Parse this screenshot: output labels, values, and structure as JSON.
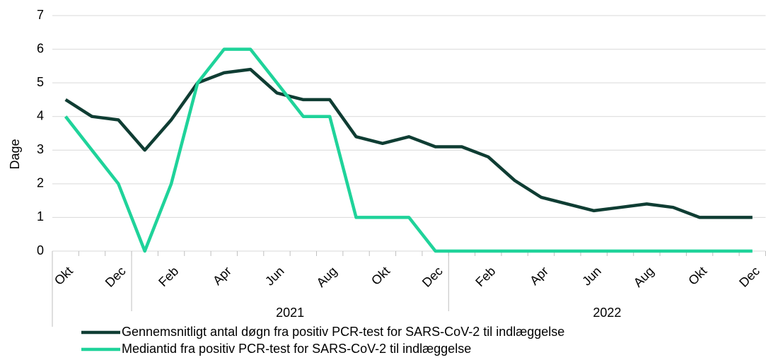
{
  "chart_data": {
    "type": "line",
    "y_label": "Dage",
    "categories": [
      "Okt",
      null,
      "Dec",
      null,
      "Feb",
      null,
      "Apr",
      null,
      "Jun",
      null,
      "Aug",
      null,
      "Okt",
      null,
      "Dec",
      null,
      "Feb",
      null,
      "Apr",
      null,
      "Jun",
      null,
      "Aug",
      null,
      "Okt",
      null,
      "Dec"
    ],
    "groups": [
      {
        "label": null,
        "size": 3
      },
      {
        "label": "2021",
        "size": 12
      },
      {
        "label": "2022",
        "size": 12
      }
    ],
    "series": [
      {
        "name": "Gennemsnitligt antal døgn fra positiv PCR-test for SARS-CoV-2 til indlæggelse",
        "color": "#0f3d33",
        "values": [
          4.5,
          4.0,
          3.9,
          3.0,
          3.9,
          5.0,
          5.3,
          5.4,
          4.7,
          4.5,
          4.5,
          3.4,
          3.2,
          3.4,
          3.1,
          3.1,
          2.8,
          2.1,
          1.6,
          1.4,
          1.2,
          1.3,
          1.4,
          1.3,
          1.0,
          1.0,
          1.0
        ]
      },
      {
        "name": "Mediantid fra positiv PCR-test for SARS-CoV-2 til indlæggelse",
        "color": "#1fd39a",
        "values": [
          4,
          3,
          2,
          0,
          2,
          5,
          6,
          6,
          5,
          4,
          4,
          1,
          1,
          1,
          0,
          0,
          0,
          0,
          0,
          0,
          0,
          0,
          0,
          0,
          0,
          0,
          0
        ]
      }
    ],
    "ylim": [
      0,
      7
    ],
    "yticks": [
      0,
      1,
      2,
      3,
      4,
      5,
      6,
      7
    ],
    "grid": true,
    "legend": "bottom"
  }
}
